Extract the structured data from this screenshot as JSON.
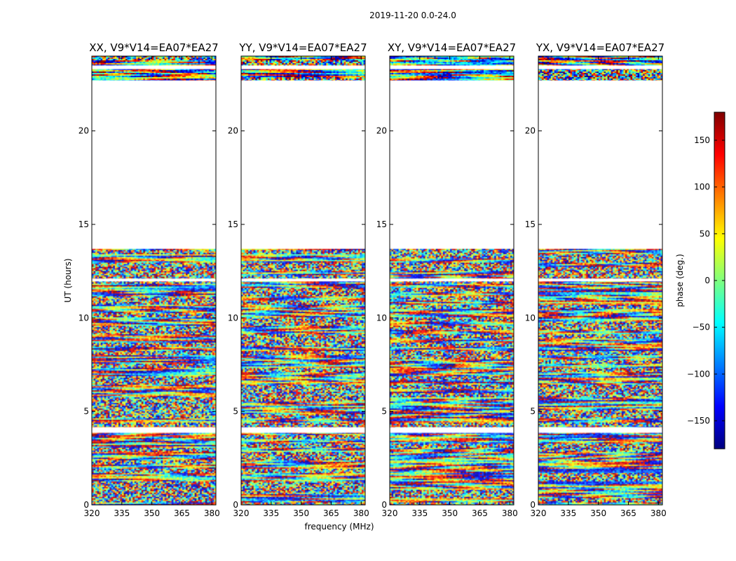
{
  "figure": {
    "suptitle": "2019-11-20 0.0-24.0",
    "xlabel": "frequency (MHz)",
    "ylabel": "UT (hours)"
  },
  "colorbar": {
    "label": "phase (deg.)",
    "range": [
      -180,
      180
    ],
    "ticks": [
      -150,
      -100,
      -50,
      0,
      50,
      100,
      150
    ],
    "tick_labels": [
      "−150",
      "−100",
      "−50",
      "0",
      "50",
      "100",
      "150"
    ],
    "colormap": "jet",
    "colors": [
      "#00007f",
      "#0000ff",
      "#007fff",
      "#00ffff",
      "#7fff7f",
      "#ffff00",
      "#ff7f00",
      "#ff0000",
      "#7f0000"
    ]
  },
  "chart_data": {
    "type": "heatmap",
    "x_range": [
      320,
      382
    ],
    "y_range": [
      0,
      24
    ],
    "xticks": [
      320,
      335,
      350,
      365,
      380
    ],
    "yticks": [
      0,
      5,
      10,
      15,
      20
    ],
    "z": "phase (deg.)",
    "z_range": [
      -180,
      180
    ],
    "data_coverage_hours": [
      [
        0,
        13.7
      ],
      [
        22.7,
        24
      ]
    ],
    "gap_bands_hours": [
      [
        3.85,
        4.15
      ],
      [
        11.95,
        12.1
      ],
      [
        13.7,
        22.7
      ],
      [
        23.3,
        23.5
      ]
    ],
    "panels": [
      {
        "title": "XX, V9*V14=EA07*EA27"
      },
      {
        "title": "YY, V9*V14=EA07*EA27"
      },
      {
        "title": "XY, V9*V14=EA07*EA27"
      },
      {
        "title": "YX, V9*V14=EA07*EA27"
      }
    ]
  }
}
